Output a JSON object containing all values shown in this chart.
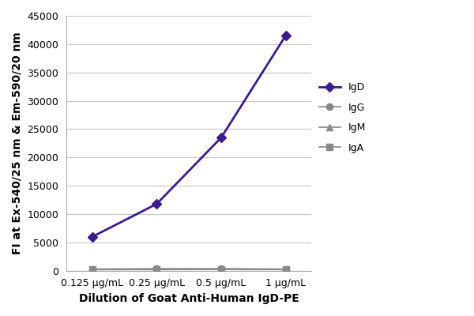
{
  "x_labels": [
    "0.125 μg/mL",
    "0.25 μg/mL",
    "0.5 μg/mL",
    "1 μg/mL"
  ],
  "x_positions": [
    0,
    1,
    2,
    3
  ],
  "series": [
    {
      "label": "IgD",
      "values": [
        6000,
        11800,
        23500,
        41500
      ],
      "color": "#3d1a8e",
      "marker": "D",
      "markersize": 6,
      "linewidth": 2.0,
      "zorder": 5
    },
    {
      "label": "IgG",
      "values": [
        300,
        350,
        350,
        300
      ],
      "color": "#888888",
      "marker": "o",
      "markersize": 6,
      "linewidth": 1.2,
      "zorder": 4
    },
    {
      "label": "IgM",
      "values": [
        200,
        200,
        250,
        200
      ],
      "color": "#888888",
      "marker": "^",
      "markersize": 6,
      "linewidth": 1.2,
      "zorder": 3
    },
    {
      "label": "IgA",
      "values": [
        250,
        300,
        300,
        250
      ],
      "color": "#888888",
      "marker": "s",
      "markersize": 6,
      "linewidth": 1.2,
      "zorder": 2
    }
  ],
  "xlabel": "Dilution of Goat Anti-Human IgD-PE",
  "ylabel": "FI at Ex-540/25 nm & Em-590/20 nm",
  "ylim": [
    0,
    45000
  ],
  "yticks": [
    0,
    5000,
    10000,
    15000,
    20000,
    25000,
    30000,
    35000,
    40000,
    45000
  ],
  "background_color": "#ffffff",
  "grid_color": "#c8c8c8",
  "legend_fontsize": 9,
  "axis_label_fontsize": 10,
  "tick_fontsize": 9
}
